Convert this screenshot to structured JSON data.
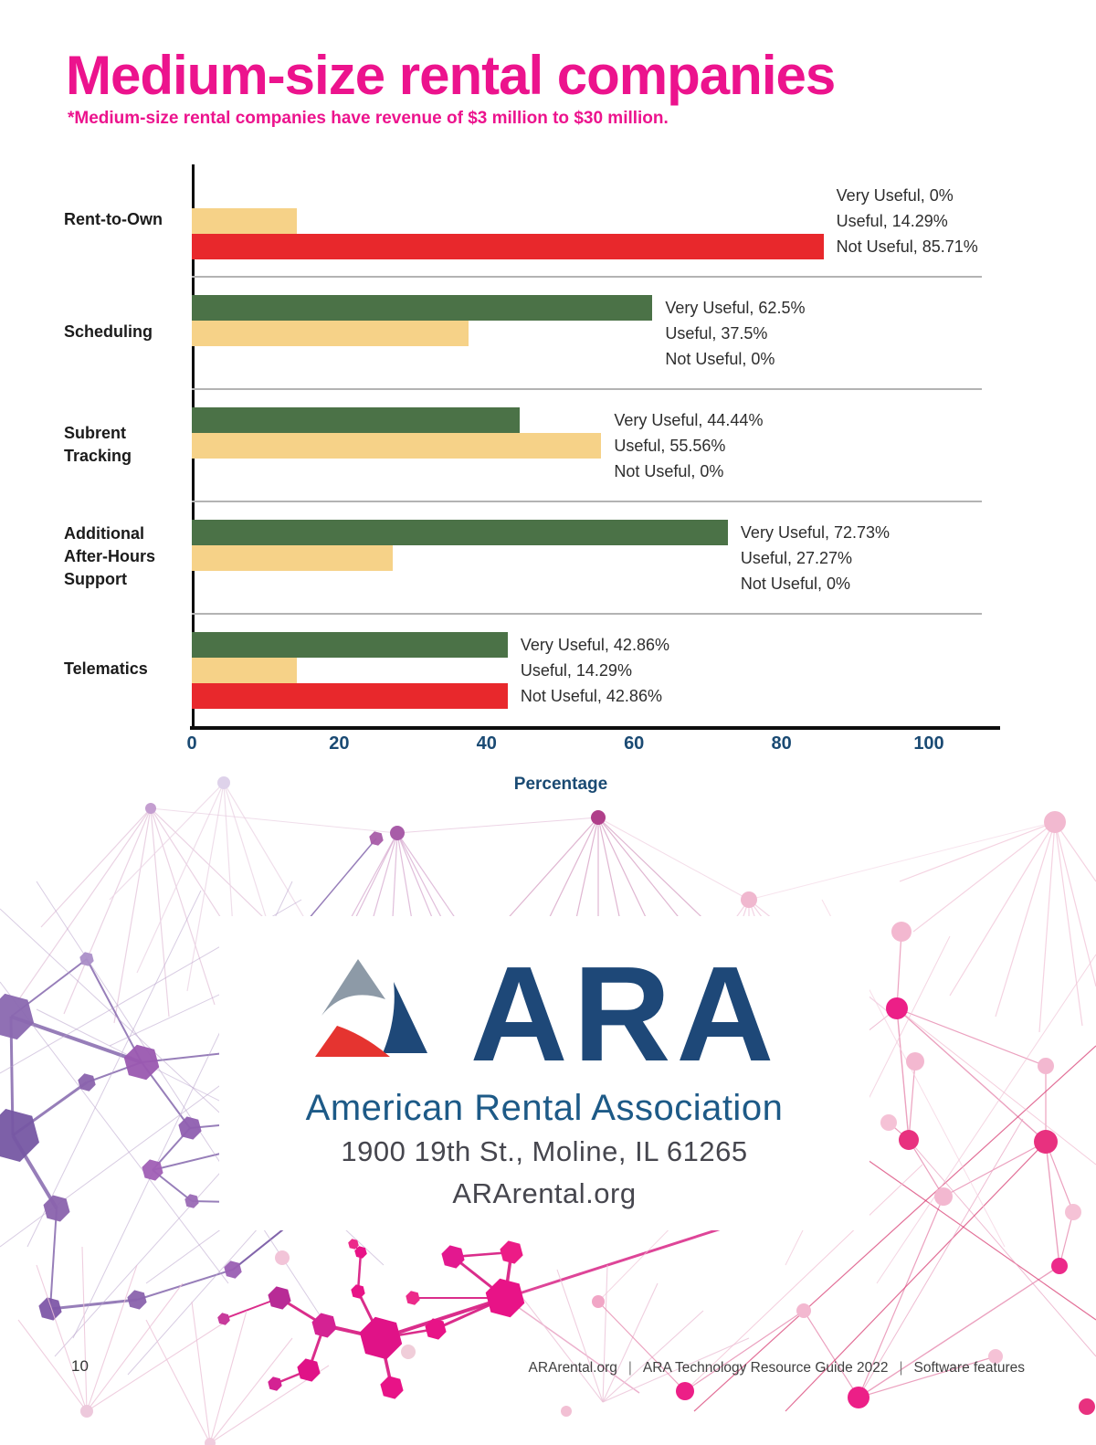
{
  "page": {
    "title": "Medium-size rental companies",
    "subtitle": "*Medium-size rental companies have revenue of $3 million to $30 million.",
    "footer": {
      "page_number": "10",
      "site": "ARArental.org",
      "guide": "ARA Technology Resource Guide 2022",
      "section": "Software features"
    }
  },
  "logo_card": {
    "logo_text": "ARA",
    "org_name": "American Rental Association",
    "address": "1900 19th St., Moline, IL 61265",
    "website": "ARArental.org"
  },
  "chart_data": {
    "type": "bar",
    "orientation": "horizontal",
    "title": "Medium-size rental companies",
    "xlabel": "Percentage",
    "ylabel": "",
    "xlim": [
      0,
      100
    ],
    "xticks": [
      0,
      20,
      40,
      60,
      80,
      100
    ],
    "grid": false,
    "legend_position": "none",
    "categories": [
      "Rent-to-Own",
      "Scheduling",
      "Subrent Tracking",
      "Additional After-Hours Support",
      "Telematics"
    ],
    "category_label_lines": [
      [
        "Rent-to-Own"
      ],
      [
        "Scheduling"
      ],
      [
        "Subrent",
        "Tracking"
      ],
      [
        "Additional",
        "After-Hours",
        "Support"
      ],
      [
        "Telematics"
      ]
    ],
    "series": [
      {
        "name": "Very Useful",
        "color": "#4b7247",
        "values": [
          0,
          62.5,
          44.44,
          72.73,
          42.86
        ]
      },
      {
        "name": "Useful",
        "color": "#f6d288",
        "values": [
          14.29,
          37.5,
          55.56,
          27.27,
          14.29
        ]
      },
      {
        "name": "Not Useful",
        "color": "#e8282c",
        "values": [
          85.71,
          0,
          0,
          0,
          42.86
        ]
      }
    ],
    "data_labels": [
      [
        "Very Useful, 0%",
        "Useful, 14.29%",
        "Not Useful, 85.71%"
      ],
      [
        "Very Useful, 62.5%",
        "Useful, 37.5%",
        "Not Useful, 0%"
      ],
      [
        "Very Useful, 44.44%",
        "Useful, 55.56%",
        "Not Useful, 0%"
      ],
      [
        "Very Useful, 72.73%",
        "Useful, 27.27%",
        "Not Useful, 0%"
      ],
      [
        "Very Useful, 42.86%",
        "Useful, 14.29%",
        "Not Useful, 42.86%"
      ]
    ],
    "colors": {
      "title_accent": "#ec138d",
      "axis_text": "#1a4a73",
      "axis_line": "#0d0d0d",
      "separator": "#b3b3b3",
      "very_useful": "#4b7247",
      "useful": "#f6d288",
      "not_useful": "#e8282c"
    }
  }
}
